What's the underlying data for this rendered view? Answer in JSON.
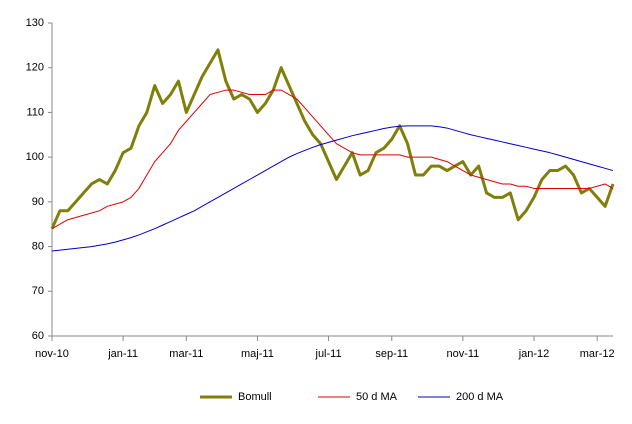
{
  "chart_data": {
    "type": "line",
    "categories": [
      "nov-10",
      null,
      null,
      null,
      null,
      null,
      null,
      null,
      null,
      "jan-11",
      null,
      null,
      null,
      null,
      null,
      null,
      null,
      "mar-11",
      null,
      null,
      null,
      null,
      null,
      null,
      null,
      null,
      "maj-11",
      null,
      null,
      null,
      null,
      null,
      null,
      null,
      null,
      "jul-11",
      null,
      null,
      null,
      null,
      null,
      null,
      null,
      "sep-11",
      null,
      null,
      null,
      null,
      null,
      null,
      null,
      null,
      "nov-11",
      null,
      null,
      null,
      null,
      null,
      null,
      null,
      null,
      "jan-12",
      null,
      null,
      null,
      null,
      null,
      null,
      null,
      "mar-12",
      null,
      null
    ],
    "series": [
      {
        "name": "Bomull",
        "color": "#7f7f0a",
        "values": [
          84,
          88,
          88,
          90,
          92,
          94,
          95,
          94,
          97,
          101,
          102,
          107,
          110,
          116,
          112,
          114,
          117,
          110,
          114,
          118,
          121,
          124,
          117,
          113,
          114,
          113,
          110,
          112,
          115,
          120,
          116,
          112,
          108,
          105,
          103,
          99,
          95,
          98,
          101,
          96,
          97,
          101,
          102,
          104,
          107,
          103,
          96,
          96,
          98,
          98,
          97,
          98,
          99,
          96,
          98,
          92,
          91,
          91,
          92,
          86,
          88,
          91,
          95,
          97,
          97,
          98,
          96,
          92,
          93,
          91,
          89,
          94
        ]
      },
      {
        "name": "50 d MA",
        "color": "#e00000",
        "values": [
          84,
          85,
          86,
          86.5,
          87,
          87.5,
          88,
          89,
          89.5,
          90,
          91,
          93,
          96,
          99,
          101,
          103,
          106,
          108,
          110,
          112,
          114,
          114.5,
          115,
          115,
          114.5,
          114,
          114,
          114,
          115,
          115,
          114,
          113,
          111,
          109,
          107,
          105,
          103,
          102,
          101,
          100.5,
          100.5,
          100.5,
          100.5,
          100.5,
          100.5,
          100,
          100,
          100,
          100,
          99.5,
          99,
          98,
          97,
          96,
          95.5,
          95,
          94.5,
          94,
          94,
          93.5,
          93.5,
          93,
          93,
          93,
          93,
          93,
          93,
          93,
          93,
          93.5,
          94,
          93
        ]
      },
      {
        "name": "200 d MA",
        "color": "#0000c8",
        "values": [
          79,
          79.2,
          79.4,
          79.6,
          79.8,
          80,
          80.3,
          80.6,
          81,
          81.5,
          82,
          82.6,
          83.3,
          84,
          84.8,
          85.6,
          86.4,
          87.2,
          88,
          89,
          90,
          91,
          92,
          93,
          94,
          95,
          96,
          97,
          98,
          99,
          100,
          100.8,
          101.5,
          102.2,
          102.8,
          103.3,
          103.8,
          104.3,
          104.8,
          105.2,
          105.6,
          106,
          106.4,
          106.7,
          106.9,
          107,
          107,
          107,
          107,
          106.8,
          106.5,
          106,
          105.5,
          105,
          104.6,
          104.2,
          103.8,
          103.4,
          103,
          102.6,
          102.2,
          101.8,
          101.4,
          101,
          100.5,
          100,
          99.5,
          99,
          98.5,
          98,
          97.5,
          97
        ]
      }
    ],
    "ylim": [
      60,
      130
    ],
    "yticks": [
      60,
      70,
      80,
      90,
      100,
      110,
      120,
      130
    ],
    "grid": false
  }
}
